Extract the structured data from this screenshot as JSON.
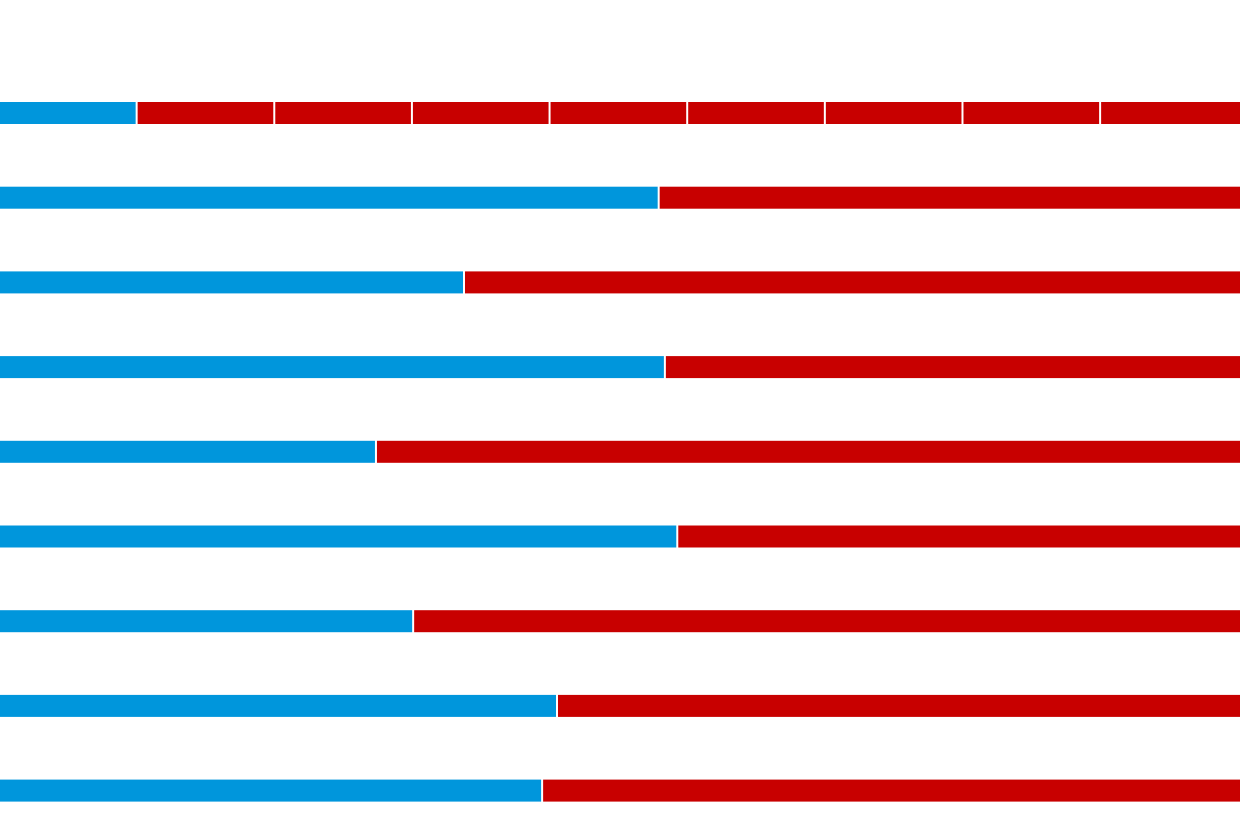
{
  "chart_data": {
    "type": "bar",
    "orientation": "horizontal",
    "stacked": true,
    "normalized": true,
    "xlim": [
      0,
      1
    ],
    "grid": false,
    "legend": "none",
    "title": "",
    "xlabel": "",
    "ylabel": "",
    "colors": {
      "blue": "#0096dc",
      "red": "#c80000",
      "separator": "#ffffff"
    },
    "rows": [
      {
        "segments": [
          {
            "color": "blue",
            "value": 0.111
          },
          {
            "color": "red",
            "value": 0.111
          },
          {
            "color": "red",
            "value": 0.111
          },
          {
            "color": "red",
            "value": 0.111
          },
          {
            "color": "red",
            "value": 0.111
          },
          {
            "color": "red",
            "value": 0.111
          },
          {
            "color": "red",
            "value": 0.111
          },
          {
            "color": "red",
            "value": 0.111
          },
          {
            "color": "red",
            "value": 0.112
          }
        ]
      },
      {
        "segments": [
          {
            "color": "blue",
            "value": 0.532
          },
          {
            "color": "red",
            "value": 0.468
          }
        ]
      },
      {
        "segments": [
          {
            "color": "blue",
            "value": 0.375
          },
          {
            "color": "red",
            "value": 0.625
          }
        ]
      },
      {
        "segments": [
          {
            "color": "blue",
            "value": 0.537
          },
          {
            "color": "red",
            "value": 0.463
          }
        ]
      },
      {
        "segments": [
          {
            "color": "blue",
            "value": 0.304
          },
          {
            "color": "red",
            "value": 0.696
          }
        ]
      },
      {
        "segments": [
          {
            "color": "blue",
            "value": 0.547
          },
          {
            "color": "red",
            "value": 0.453
          }
        ]
      },
      {
        "segments": [
          {
            "color": "blue",
            "value": 0.334
          },
          {
            "color": "red",
            "value": 0.666
          }
        ]
      },
      {
        "segments": [
          {
            "color": "blue",
            "value": 0.45
          },
          {
            "color": "red",
            "value": 0.55
          }
        ]
      },
      {
        "segments": [
          {
            "color": "blue",
            "value": 0.438
          },
          {
            "color": "red",
            "value": 0.562
          }
        ]
      }
    ]
  }
}
